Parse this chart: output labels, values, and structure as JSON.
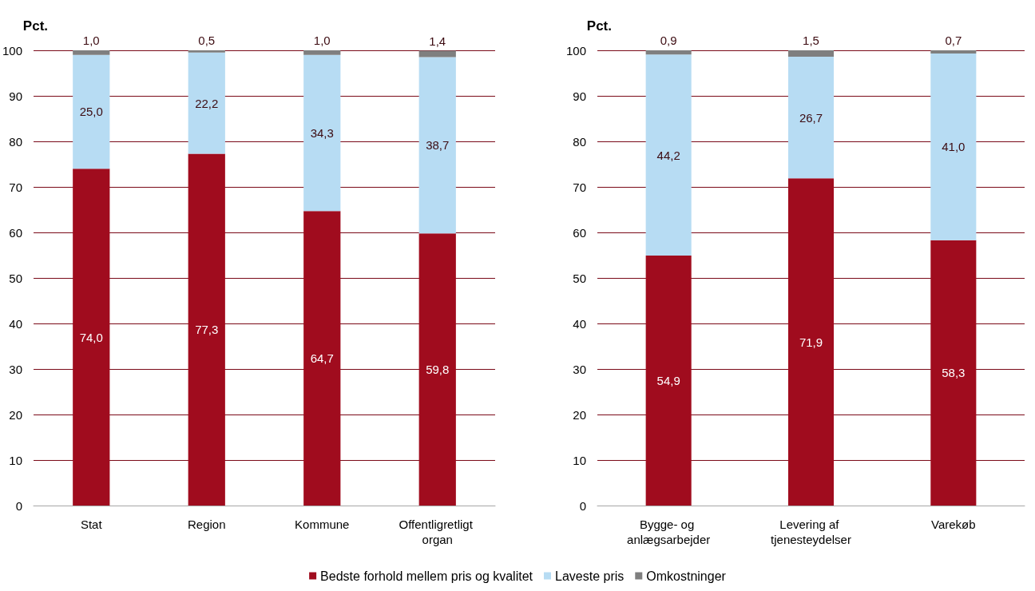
{
  "chart_data": [
    {
      "type": "bar",
      "ylabel": "Pct.",
      "categories": [
        "Stat",
        "Region",
        "Kommune",
        "Offentligretligt organ"
      ],
      "stacked": true,
      "ylim": [
        0,
        100
      ],
      "yticks": [
        0,
        10,
        20,
        30,
        40,
        50,
        60,
        70,
        80,
        90,
        100
      ],
      "grid": "y",
      "legend": "bottom",
      "series": [
        {
          "name": "Bedste forhold mellem pris og kvalitet",
          "color": "#a00c1e",
          "values": [
            74.0,
            77.3,
            64.7,
            59.8
          ],
          "value_labels": [
            "74,0",
            "77,3",
            "64,7",
            "59,8"
          ]
        },
        {
          "name": "Laveste pris",
          "color": "#b7dcf3",
          "values": [
            25.0,
            22.2,
            34.3,
            38.7
          ],
          "value_labels": [
            "25,0",
            "22,2",
            "34,3",
            "38,7"
          ]
        },
        {
          "name": "Omkostninger",
          "color": "#7f7f7f",
          "values": [
            1.0,
            0.5,
            1.0,
            1.4
          ],
          "value_labels": [
            "1,0",
            "0,5",
            "1,0",
            "1,4"
          ]
        }
      ]
    },
    {
      "type": "bar",
      "ylabel": "Pct.",
      "categories": [
        "Bygge- og anlægsarbejder",
        "Levering af tjenesteydelser",
        "Varekøb"
      ],
      "stacked": true,
      "ylim": [
        0,
        100
      ],
      "yticks": [
        0,
        10,
        20,
        30,
        40,
        50,
        60,
        70,
        80,
        90,
        100
      ],
      "grid": "y",
      "series": [
        {
          "color": "#a00c1e",
          "values": [
            54.9,
            71.9,
            58.3
          ],
          "value_labels": [
            "54,9",
            "71,9",
            "58,3"
          ]
        },
        {
          "color": "#b7dcf3",
          "values": [
            44.2,
            26.7,
            41.0
          ],
          "value_labels": [
            "44,2",
            "26,7",
            "41,0"
          ]
        },
        {
          "color": "#7f7f7f",
          "values": [
            0.9,
            1.5,
            0.7
          ],
          "value_labels": [
            "0,9",
            "1,5",
            "0,7"
          ]
        }
      ]
    }
  ]
}
